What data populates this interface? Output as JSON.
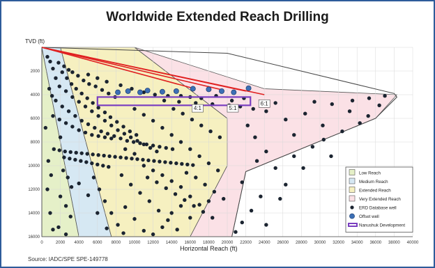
{
  "title": "Worldwide Extended Reach Drilling",
  "source": "Source:   IADC/SPE SPE-149778",
  "colors": {
    "frame": "#2e5b9a",
    "low_reach": "#e5f0c8",
    "medium_reach": "#d6e8f3",
    "extended_reach": "#f6f0c0",
    "very_extended_reach": "#fbe1e6",
    "erd_dot": "#1b2430",
    "offset_well": "#3c6fb5",
    "nanushuk": "#7a3fc0",
    "red_line": "#e02020"
  },
  "chart_data": {
    "type": "scatter",
    "xlabel": "Horizontal Reach (ft)",
    "ylabel": "TVD (ft)",
    "xlim": [
      0,
      40000
    ],
    "ylim": [
      16000,
      0
    ],
    "x_ticks": [
      0,
      2000,
      4000,
      6000,
      8000,
      10000,
      12000,
      14000,
      16000,
      18000,
      20000,
      22000,
      24000,
      26000,
      28000,
      30000,
      32000,
      34000,
      36000,
      38000,
      40000
    ],
    "y_ticks": [
      0,
      2000,
      4000,
      6000,
      8000,
      10000,
      12000,
      14000,
      16000
    ],
    "grid": true,
    "legend_position": "bottom-right",
    "legend": [
      {
        "label": "Low Reach",
        "kind": "region",
        "color": "#e5f0c8"
      },
      {
        "label": "Medium Reach",
        "kind": "region",
        "color": "#d6e8f3"
      },
      {
        "label": "Extended Reach",
        "kind": "region",
        "color": "#f6f0c0"
      },
      {
        "label": "Very Extended Reach",
        "kind": "region",
        "color": "#fbe1e6"
      },
      {
        "label": "ERD Database well",
        "kind": "dot",
        "color": "#1b2430"
      },
      {
        "label": "Offset well",
        "kind": "circle",
        "color": "#3c6fb5"
      },
      {
        "label": "Nanushuk Development",
        "kind": "rect",
        "color": "#7a3fc0"
      }
    ],
    "regions": [
      {
        "name": "Low Reach",
        "polygon": [
          [
            0,
            0
          ],
          [
            0,
            16000
          ],
          [
            4000,
            16000
          ],
          [
            0,
            0
          ]
        ]
      },
      {
        "name": "Medium Reach",
        "polygon": [
          [
            0,
            0
          ],
          [
            4000,
            16000
          ],
          [
            7500,
            16000
          ],
          [
            2000,
            0
          ]
        ]
      },
      {
        "name": "Extended Reach",
        "polygon": [
          [
            2000,
            0
          ],
          [
            7500,
            16000
          ],
          [
            16000,
            16000
          ],
          [
            20000,
            10000
          ],
          [
            20000,
            6000
          ],
          [
            10000,
            0
          ]
        ]
      },
      {
        "name": "Very Extended Reach",
        "polygon": [
          [
            10000,
            0
          ],
          [
            20000,
            6000
          ],
          [
            20000,
            10000
          ],
          [
            16000,
            16000
          ],
          [
            20500,
            16000
          ],
          [
            22000,
            10500
          ],
          [
            36000,
            6000
          ],
          [
            38300,
            4000
          ],
          [
            24000,
            3500
          ],
          [
            10000,
            0
          ]
        ]
      }
    ],
    "envelope": [
      [
        0,
        0
      ],
      [
        20000,
        500
      ],
      [
        38000,
        3900
      ],
      [
        38300,
        4200
      ],
      [
        36000,
        6000
      ],
      [
        22000,
        10500
      ],
      [
        20500,
        16000
      ]
    ],
    "red_lines": [
      {
        "from": [
          0,
          0
        ],
        "to": [
          24000,
          4000
        ]
      },
      {
        "from": [
          0,
          0
        ],
        "to": [
          22000,
          3700
        ]
      },
      {
        "from": [
          0,
          0
        ],
        "to": [
          19500,
          3600
        ]
      },
      {
        "from": [
          0,
          0
        ],
        "to": [
          16500,
          3500
        ]
      }
    ],
    "nanushuk_box": {
      "x": [
        6000,
        22500
      ],
      "y": [
        4200,
        4900
      ]
    },
    "ratio_labels": [
      {
        "text": "4:1",
        "x": 16800,
        "y": 5300
      },
      {
        "text": "5:1",
        "x": 20600,
        "y": 5300
      },
      {
        "text": "6:1",
        "x": 24000,
        "y": 4900
      }
    ],
    "offset_wells": {
      "name": "Offset well",
      "points": [
        [
          8200,
          3800
        ],
        [
          9300,
          3700
        ],
        [
          10600,
          3800
        ],
        [
          11400,
          3650
        ],
        [
          13000,
          3750
        ],
        [
          14500,
          3700
        ],
        [
          16300,
          3500
        ],
        [
          18000,
          3550
        ],
        [
          19400,
          3700
        ],
        [
          20700,
          3800
        ],
        [
          22300,
          3450
        ]
      ]
    },
    "erd_wells": {
      "name": "ERD Database well",
      "points": [
        [
          1800,
          1300
        ],
        [
          2400,
          1600
        ],
        [
          2900,
          1900
        ],
        [
          3300,
          2100
        ],
        [
          3900,
          2400
        ],
        [
          4500,
          2800
        ],
        [
          5100,
          3100
        ],
        [
          5800,
          3300
        ],
        [
          6500,
          3600
        ],
        [
          7200,
          3900
        ],
        [
          7900,
          4200
        ],
        [
          2200,
          2100
        ],
        [
          2700,
          2600
        ],
        [
          3200,
          3100
        ],
        [
          3700,
          3500
        ],
        [
          4300,
          3900
        ],
        [
          4900,
          4300
        ],
        [
          5500,
          4700
        ],
        [
          6100,
          5100
        ],
        [
          6800,
          5500
        ],
        [
          7400,
          5900
        ],
        [
          8100,
          6300
        ],
        [
          8800,
          6700
        ],
        [
          9500,
          7100
        ],
        [
          10200,
          7400
        ],
        [
          1900,
          3300
        ],
        [
          2600,
          3700
        ],
        [
          3300,
          4200
        ],
        [
          4000,
          4600
        ],
        [
          4700,
          5000
        ],
        [
          5400,
          5400
        ],
        [
          6100,
          5800
        ],
        [
          6800,
          6200
        ],
        [
          7500,
          6600
        ],
        [
          8200,
          7000
        ],
        [
          8900,
          7300
        ],
        [
          9600,
          7600
        ],
        [
          10300,
          7900
        ],
        [
          11000,
          8200
        ],
        [
          11700,
          8500
        ],
        [
          12400,
          8800
        ],
        [
          1500,
          4500
        ],
        [
          2200,
          5000
        ],
        [
          2900,
          5400
        ],
        [
          3600,
          5800
        ],
        [
          4300,
          6200
        ],
        [
          5000,
          6500
        ],
        [
          5700,
          6800
        ],
        [
          6400,
          7100
        ],
        [
          7100,
          7300
        ],
        [
          7800,
          7500
        ],
        [
          8500,
          7700
        ],
        [
          9200,
          7900
        ],
        [
          9900,
          8000
        ],
        [
          10600,
          8100
        ],
        [
          11300,
          8200
        ],
        [
          12000,
          8300
        ],
        [
          12700,
          8400
        ],
        [
          13400,
          8500
        ],
        [
          14100,
          8600
        ],
        [
          1200,
          5800
        ],
        [
          1900,
          6100
        ],
        [
          2600,
          6400
        ],
        [
          3300,
          6700
        ],
        [
          4000,
          7000
        ],
        [
          4700,
          7200
        ],
        [
          5400,
          7400
        ],
        [
          6100,
          7500
        ],
        [
          6800,
          7600
        ],
        [
          7500,
          7700
        ],
        [
          1300,
          8600
        ],
        [
          1900,
          8700
        ],
        [
          2500,
          8800
        ],
        [
          3100,
          8850
        ],
        [
          3700,
          8900
        ],
        [
          4300,
          8950
        ],
        [
          4900,
          9000
        ],
        [
          5500,
          9050
        ],
        [
          6100,
          9100
        ],
        [
          6700,
          9150
        ],
        [
          7300,
          9200
        ],
        [
          7900,
          9250
        ],
        [
          8500,
          9300
        ],
        [
          9100,
          9350
        ],
        [
          9700,
          9400
        ],
        [
          10300,
          9450
        ],
        [
          10900,
          9500
        ],
        [
          11500,
          9550
        ],
        [
          12100,
          9600
        ],
        [
          12700,
          9650
        ],
        [
          13300,
          9700
        ],
        [
          13900,
          9750
        ],
        [
          14500,
          9800
        ],
        [
          15100,
          9850
        ],
        [
          15700,
          9900
        ],
        [
          16300,
          9950
        ],
        [
          2400,
          9300
        ],
        [
          3000,
          9400
        ],
        [
          3600,
          9500
        ],
        [
          4200,
          9600
        ],
        [
          4800,
          9700
        ],
        [
          5400,
          9800
        ],
        [
          6000,
          9900
        ],
        [
          6600,
          10000
        ],
        [
          7200,
          10100
        ],
        [
          2000,
          7600
        ],
        [
          2300,
          10400
        ],
        [
          2800,
          11000
        ],
        [
          3200,
          11800
        ],
        [
          2000,
          12600
        ],
        [
          2600,
          13400
        ],
        [
          3100,
          14300
        ],
        [
          1800,
          15200
        ],
        [
          2600,
          15800
        ],
        [
          5600,
          11000
        ],
        [
          6200,
          12000
        ],
        [
          6800,
          13000
        ],
        [
          7500,
          14000
        ],
        [
          8200,
          15000
        ],
        [
          8800,
          15700
        ],
        [
          8600,
          10800
        ],
        [
          9600,
          11600
        ],
        [
          10600,
          12300
        ],
        [
          11600,
          13000
        ],
        [
          12600,
          13800
        ],
        [
          13600,
          14600
        ],
        [
          14600,
          15400
        ],
        [
          11400,
          11000
        ],
        [
          12400,
          11400
        ],
        [
          13400,
          11900
        ],
        [
          14400,
          12400
        ],
        [
          15400,
          12900
        ],
        [
          16400,
          13400
        ],
        [
          17400,
          13900
        ],
        [
          18400,
          14400
        ],
        [
          15600,
          10600
        ],
        [
          16600,
          11000
        ],
        [
          17600,
          11600
        ],
        [
          18600,
          12200
        ],
        [
          19600,
          12800
        ],
        [
          14200,
          5200
        ],
        [
          15200,
          5600
        ],
        [
          16200,
          6100
        ],
        [
          17200,
          6600
        ],
        [
          18200,
          7100
        ],
        [
          19200,
          7600
        ],
        [
          13200,
          4500
        ],
        [
          14800,
          4600
        ],
        [
          16600,
          4700
        ],
        [
          18400,
          4800
        ],
        [
          20200,
          4900
        ],
        [
          21400,
          5000
        ],
        [
          22800,
          5200
        ],
        [
          24200,
          5400
        ],
        [
          25200,
          4700
        ],
        [
          26300,
          6100
        ],
        [
          27200,
          7400
        ],
        [
          28400,
          5600
        ],
        [
          29200,
          8400
        ],
        [
          30300,
          6600
        ],
        [
          31200,
          9200
        ],
        [
          32400,
          7100
        ],
        [
          33200,
          5400
        ],
        [
          34300,
          6400
        ],
        [
          35200,
          5800
        ],
        [
          36400,
          4900
        ],
        [
          23000,
          7600
        ],
        [
          24200,
          8800
        ],
        [
          25200,
          10200
        ],
        [
          26300,
          11600
        ],
        [
          23600,
          12600
        ],
        [
          22600,
          13800
        ],
        [
          21600,
          14800
        ],
        [
          20900,
          15600
        ],
        [
          24200,
          15000
        ],
        [
          22200,
          6600
        ],
        [
          23200,
          9600
        ],
        [
          25700,
          12800
        ],
        [
          21600,
          11400
        ],
        [
          28200,
          10200
        ],
        [
          27200,
          9200
        ],
        [
          30400,
          7800
        ],
        [
          29400,
          4600
        ],
        [
          31300,
          4800
        ],
        [
          33500,
          4500
        ],
        [
          35300,
          4300
        ],
        [
          37000,
          4100
        ],
        [
          600,
          800
        ],
        [
          900,
          1200
        ],
        [
          1200,
          1800
        ],
        [
          1500,
          2600
        ],
        [
          800,
          3500
        ],
        [
          1100,
          4100
        ],
        [
          400,
          6800
        ],
        [
          700,
          9600
        ],
        [
          1000,
          10800
        ],
        [
          600,
          12000
        ],
        [
          900,
          14000
        ],
        [
          1200,
          15400
        ],
        [
          5000,
          2300
        ],
        [
          6000,
          2600
        ],
        [
          7000,
          2900
        ],
        [
          8500,
          3200
        ],
        [
          9700,
          3500
        ],
        [
          11000,
          3800
        ],
        [
          12200,
          4000
        ],
        [
          13600,
          4100
        ],
        [
          15000,
          4100
        ],
        [
          16000,
          4200
        ],
        [
          17200,
          4300
        ],
        [
          18800,
          4100
        ],
        [
          20500,
          4500
        ],
        [
          21800,
          4300
        ],
        [
          10000,
          5200
        ],
        [
          11000,
          5700
        ],
        [
          12000,
          6200
        ],
        [
          13000,
          6800
        ],
        [
          14000,
          7400
        ],
        [
          15000,
          8000
        ],
        [
          16000,
          8600
        ],
        [
          17000,
          9200
        ],
        [
          18000,
          9800
        ],
        [
          19000,
          10400
        ],
        [
          9000,
          8600
        ],
        [
          10000,
          9000
        ],
        [
          11000,
          10000
        ],
        [
          12000,
          10400
        ],
        [
          13000,
          10800
        ],
        [
          14000,
          11300
        ],
        [
          15000,
          11800
        ],
        [
          16000,
          12600
        ],
        [
          17000,
          13300
        ],
        [
          18000,
          13000
        ],
        [
          4000,
          11500
        ],
        [
          5000,
          12500
        ],
        [
          6000,
          14000
        ],
        [
          7000,
          15300
        ],
        [
          9000,
          13500
        ],
        [
          10000,
          14500
        ],
        [
          11000,
          15500
        ],
        [
          12000,
          15800
        ],
        [
          13000,
          15200
        ],
        [
          14000,
          14000
        ],
        [
          15000,
          13400
        ],
        [
          16000,
          14400
        ]
      ]
    }
  }
}
